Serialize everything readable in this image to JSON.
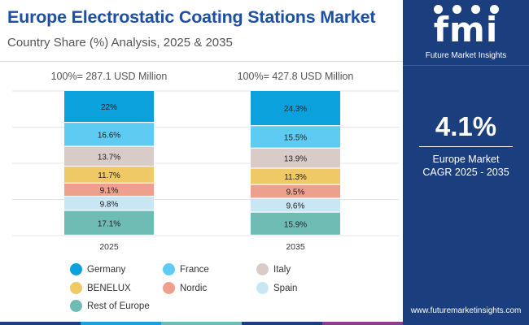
{
  "header": {
    "title": "Europe Electrostatic Coating Stations Market",
    "subtitle": "Country Share (%) Analysis, 2025 & 2035"
  },
  "chart_data": {
    "type": "bar",
    "stacked": true,
    "percent": true,
    "categories": [
      "2025",
      "2035"
    ],
    "totals": [
      "100%= 287.1 USD Million",
      "100%= 427.8 USD Million"
    ],
    "series": [
      {
        "name": "Germany",
        "values": [
          22,
          24.3
        ],
        "labels": [
          "22%",
          "24.3%"
        ],
        "color": "#0aa1dd"
      },
      {
        "name": "France",
        "values": [
          16.6,
          15.5
        ],
        "labels": [
          "16.6%",
          "15.5%"
        ],
        "color": "#5ecbf2"
      },
      {
        "name": "Italy",
        "values": [
          13.7,
          13.9
        ],
        "labels": [
          "13.7%",
          "13.9%"
        ],
        "color": "#d9ccc8"
      },
      {
        "name": "BENELUX",
        "values": [
          11.7,
          11.3
        ],
        "labels": [
          "11.7%",
          "11.3%"
        ],
        "color": "#efc965"
      },
      {
        "name": "Nordic",
        "values": [
          9.1,
          9.5
        ],
        "labels": [
          "9.1%",
          "9.5%"
        ],
        "color": "#eda18d"
      },
      {
        "name": "Spain",
        "values": [
          9.8,
          9.6
        ],
        "labels": [
          "9.8%",
          "9.6%"
        ],
        "color": "#c9e6f4"
      },
      {
        "name": "Rest of Europe",
        "values": [
          17.1,
          15.9
        ],
        "labels": [
          "17.1%",
          "15.9%"
        ],
        "color": "#6fbcb4"
      }
    ],
    "ylim": [
      0,
      100
    ],
    "grid": true,
    "legend_position": "bottom"
  },
  "panel": {
    "logo_text": "fmi",
    "logo_subtext": "Future Market Insights",
    "cagr_value": "4.1%",
    "cagr_label_line1": "Europe Market",
    "cagr_label_line2": "CAGR 2025 - 2035",
    "website": "www.futuremarketinsights.com"
  },
  "footer_colors": [
    "#1b3f7e",
    "#1ba0d8",
    "#6fbcb4",
    "#1b3f7e",
    "#8a3c8e"
  ]
}
